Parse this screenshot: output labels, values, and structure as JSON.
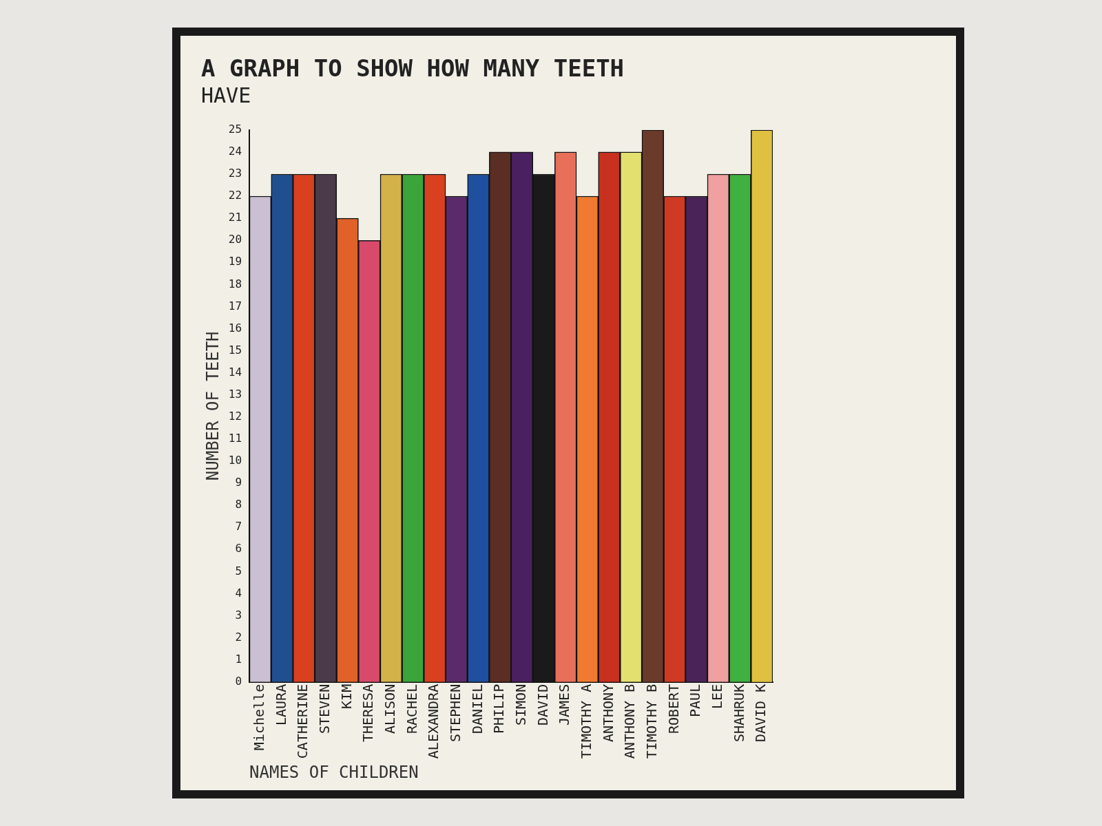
{
  "chart_data": {
    "type": "bar",
    "title": "A GRAPH TO SHOW HOW MANY TEETH",
    "subtitle": "HAVE",
    "x_label": "NAMES OF CHILDREN",
    "y_label": "NUMBER OF TEETH",
    "categories": [
      "Michelle",
      "LAURA",
      "CATHERINE",
      "STEVEN",
      "KIM",
      "THERESA",
      "ALISON",
      "RACHEL",
      "ALEXANDRA",
      "STEPHEN",
      "DANIEL",
      "PHILIP",
      "SIMON",
      "DAVID",
      "JAMES",
      "TIMOTHY A",
      "ANTHONY",
      "ANTHONY B",
      "TIMOTHY B",
      "ROBERT",
      "PAUL",
      "LEE",
      "SHAHRUK",
      "DAVID K"
    ],
    "values": [
      22,
      23,
      23,
      23,
      21,
      20,
      23,
      23,
      23,
      22,
      23,
      24,
      24,
      23,
      24,
      22,
      24,
      24,
      25,
      22,
      22,
      23,
      23,
      25
    ],
    "colors": [
      "#cbbfd3",
      "#1f4f8f",
      "#d8401f",
      "#4a3a4a",
      "#e0622a",
      "#d94a6a",
      "#d4b24a",
      "#3aa63a",
      "#d8401f",
      "#5a2a6a",
      "#1f4f9f",
      "#5a2e22",
      "#4a2060",
      "#1a1a1a",
      "#e8705a",
      "#f07a30",
      "#c83020",
      "#e4e070",
      "#6a3a2a",
      "#d03a22",
      "#4a2458",
      "#f0a0a0",
      "#40b040",
      "#e0c040"
    ],
    "ylim": [
      0,
      25
    ],
    "yticks": [
      0,
      1,
      2,
      3,
      4,
      5,
      6,
      7,
      8,
      9,
      10,
      11,
      12,
      13,
      14,
      15,
      16,
      17,
      18,
      19,
      20,
      21,
      22,
      23,
      24,
      25
    ],
    "grid": false,
    "tick_labels": true
  }
}
